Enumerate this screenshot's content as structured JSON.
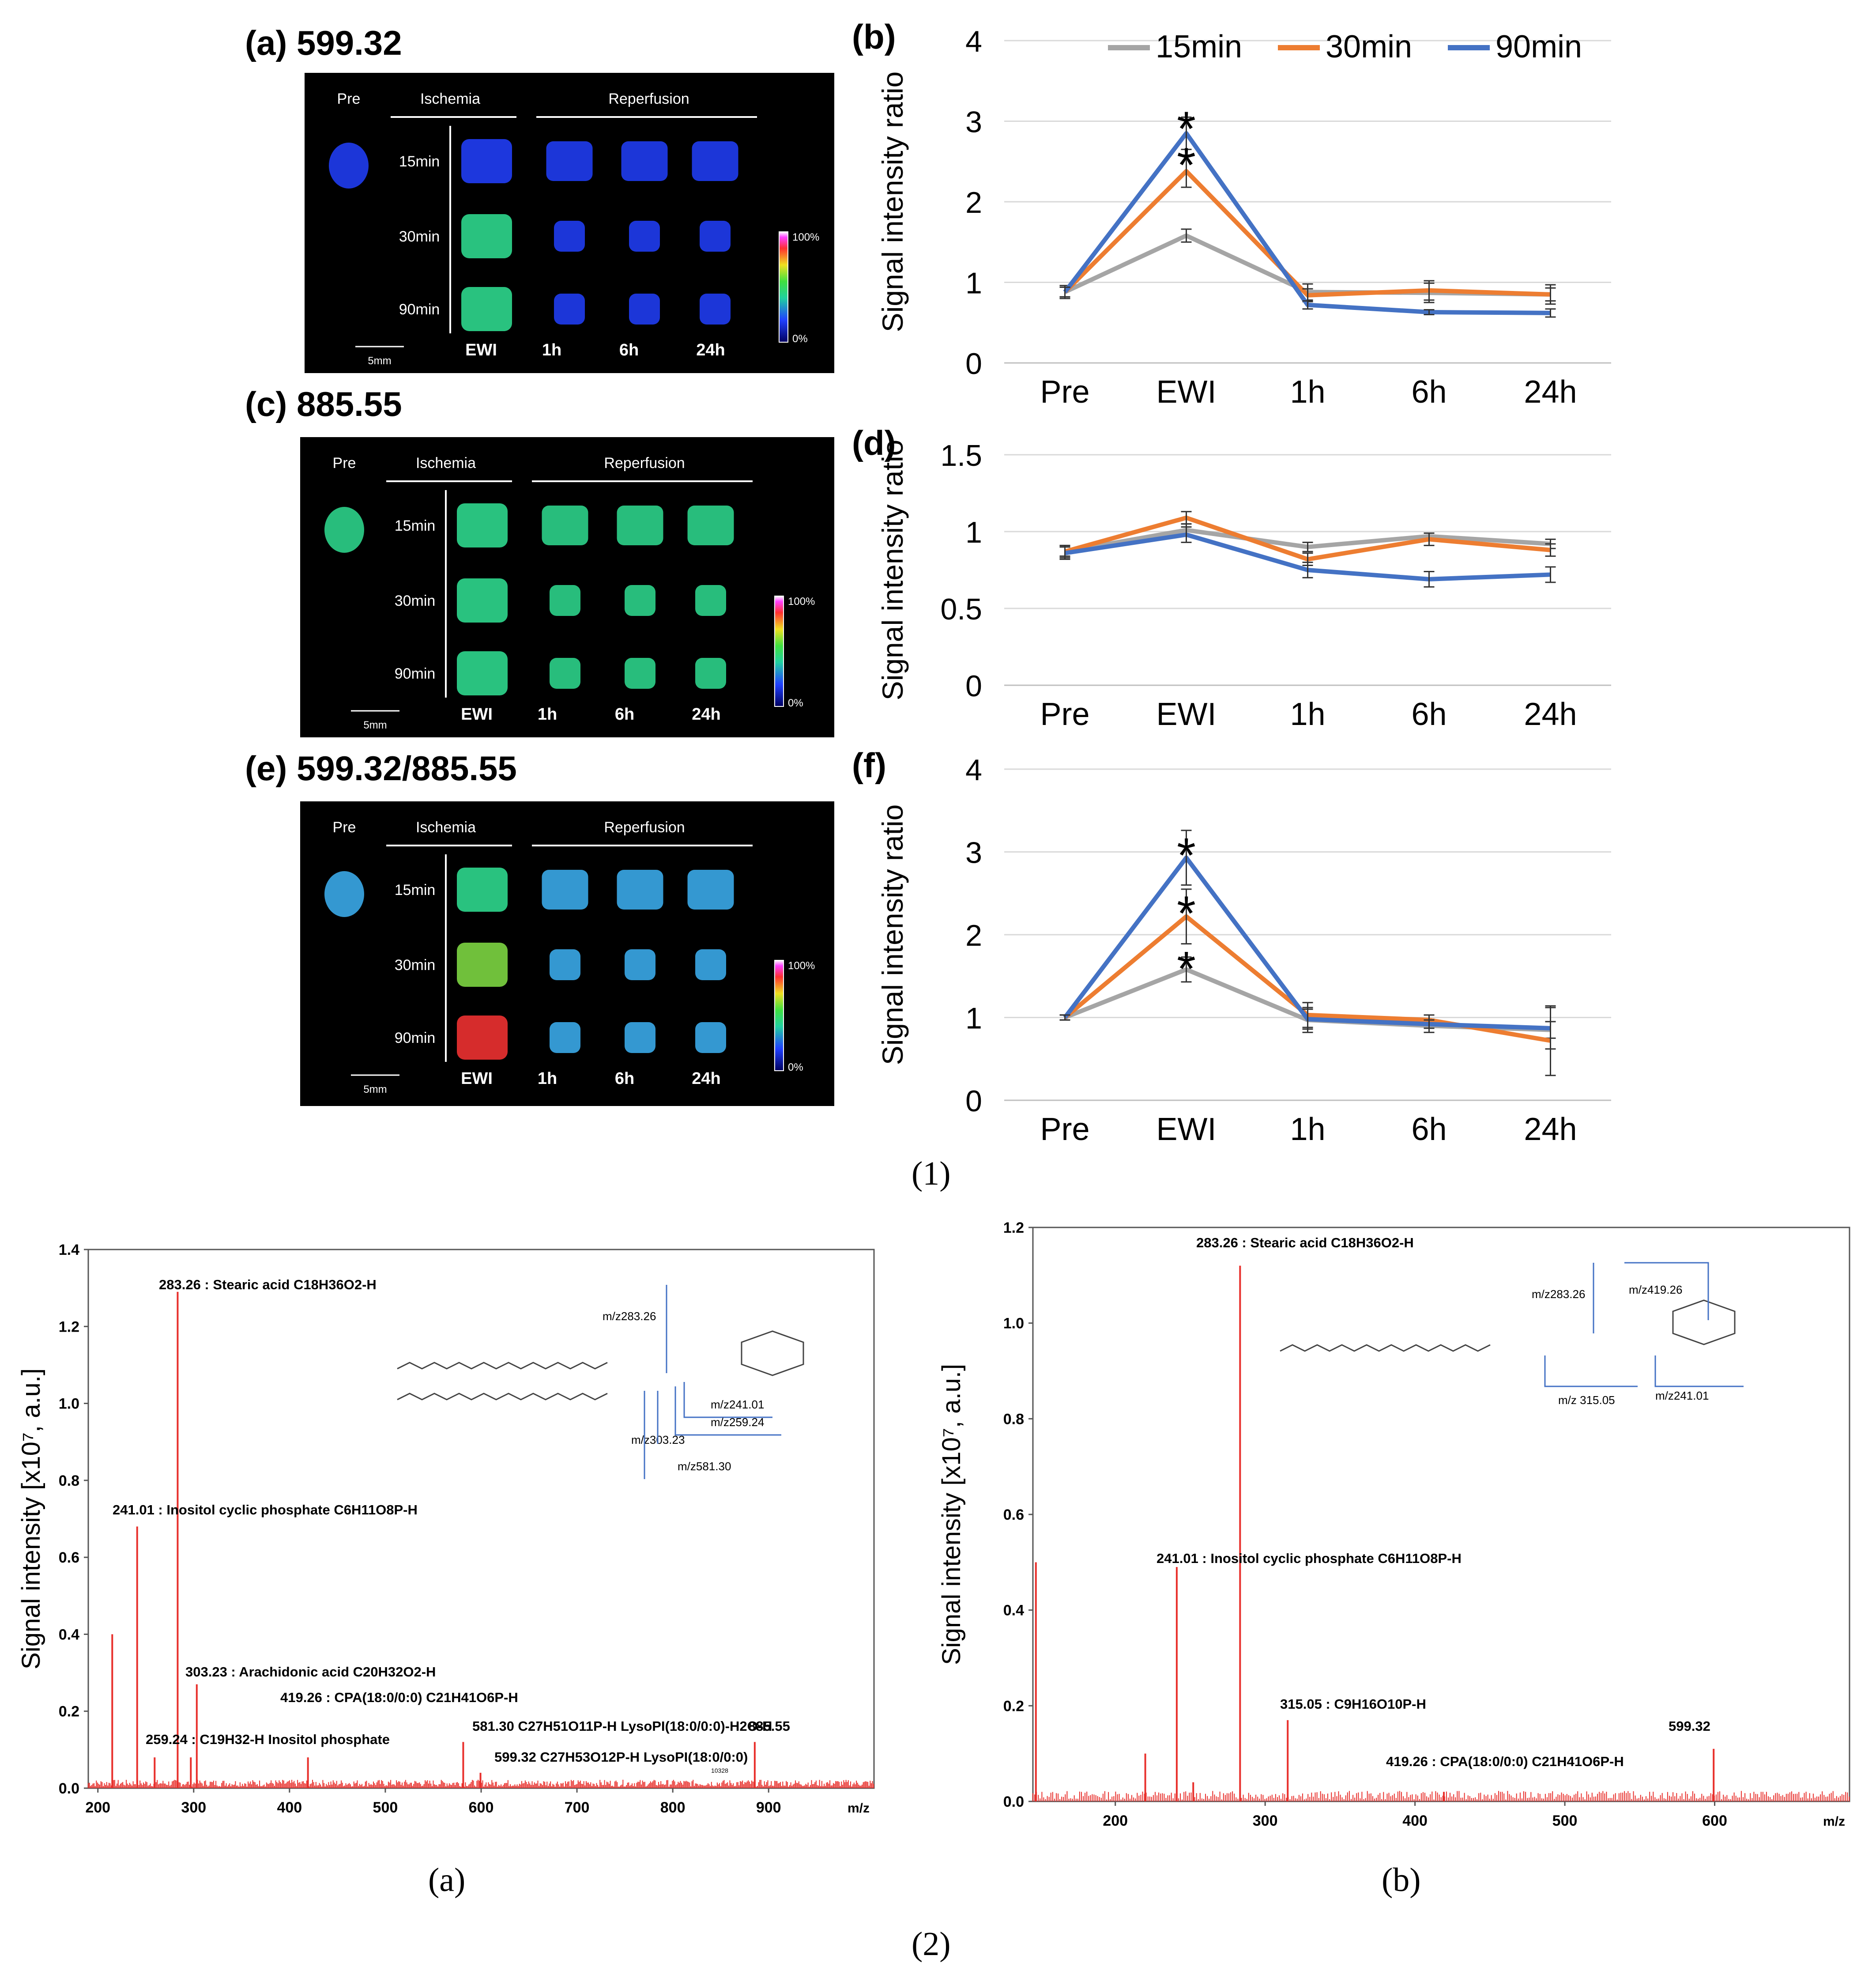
{
  "figure1": {
    "label": "(1)",
    "panels": [
      {
        "label": "(a) 599.32"
      },
      {
        "label": "(c) 885.55"
      },
      {
        "label": "(e) 599.32/885.55"
      }
    ],
    "msi": {
      "pre": "Pre",
      "ischemia": "Ischemia",
      "reperfusion": "Reperfusion",
      "rows": [
        "15min",
        "30min",
        "90min"
      ],
      "cols": [
        "EWI",
        "1h",
        "6h",
        "24h"
      ],
      "scale": "5mm",
      "cbar_max": "100%",
      "cbar_min": "0%",
      "colors": {
        "low": "#1f3cf0",
        "mid": "#2cd28a",
        "high": "#f0e020",
        "hot": "#e83030"
      }
    }
  },
  "figure2": {
    "label": "(2)",
    "sub_a": "(a)",
    "sub_b": "(b)"
  },
  "chart_data": [
    {
      "id": "b",
      "type": "line",
      "panel_label": "(b)",
      "ylabel": "Signal intensity ratio",
      "categories": [
        "Pre",
        "EWI",
        "1h",
        "6h",
        "24h"
      ],
      "ylim": [
        0,
        4
      ],
      "yticks": [
        0,
        1,
        2,
        3,
        4
      ],
      "ytick_labels": [
        "0",
        "1",
        "2",
        "3",
        "4"
      ],
      "legend": "top",
      "series": [
        {
          "name": "15min",
          "color": "#a5a5a5",
          "values": [
            0.88,
            1.58,
            0.88,
            0.87,
            0.85
          ],
          "err": [
            0.08,
            0.08,
            0.1,
            0.12,
            0.12
          ]
        },
        {
          "name": "30min",
          "color": "#ed7d31",
          "values": [
            0.88,
            2.38,
            0.84,
            0.9,
            0.85
          ],
          "err": [
            0.06,
            0.2,
            0.08,
            0.12,
            0.08
          ]
        },
        {
          "name": "90min",
          "color": "#4472c4",
          "values": [
            0.88,
            2.85,
            0.72,
            0.63,
            0.62
          ],
          "err": [
            0.06,
            0.2,
            0.05,
            0.03,
            0.05
          ]
        }
      ],
      "annotations": [
        {
          "text": "*",
          "at": "EWI",
          "y": 3.0
        },
        {
          "text": "*",
          "at": "EWI",
          "y": 2.55
        }
      ]
    },
    {
      "id": "d",
      "type": "line",
      "panel_label": "(d)",
      "ylabel": "Signal intensity ratio",
      "categories": [
        "Pre",
        "EWI",
        "1h",
        "6h",
        "24h"
      ],
      "ylim": [
        0,
        1.5
      ],
      "yticks": [
        0,
        0.5,
        1,
        1.5
      ],
      "ytick_labels": [
        "0",
        "0.5",
        "1",
        "1.5"
      ],
      "series": [
        {
          "name": "15min",
          "color": "#a5a5a5",
          "values": [
            0.87,
            1.01,
            0.9,
            0.97,
            0.92
          ],
          "err": [
            0.03,
            0.04,
            0.03,
            0.02,
            0.03
          ]
        },
        {
          "name": "30min",
          "color": "#ed7d31",
          "values": [
            0.87,
            1.09,
            0.82,
            0.95,
            0.88
          ],
          "err": [
            0.04,
            0.04,
            0.04,
            0.04,
            0.04
          ]
        },
        {
          "name": "90min",
          "color": "#4472c4",
          "values": [
            0.86,
            0.98,
            0.75,
            0.69,
            0.72
          ],
          "err": [
            0.04,
            0.05,
            0.05,
            0.05,
            0.05
          ]
        }
      ],
      "annotations": []
    },
    {
      "id": "f",
      "type": "line",
      "panel_label": "(f)",
      "ylabel": "Signal intensity ratio",
      "categories": [
        "Pre",
        "EWI",
        "1h",
        "6h",
        "24h"
      ],
      "ylim": [
        0,
        4
      ],
      "yticks": [
        0,
        1,
        2,
        3,
        4
      ],
      "ytick_labels": [
        "0",
        "1",
        "2",
        "3",
        "4"
      ],
      "series": [
        {
          "name": "15min",
          "color": "#a5a5a5",
          "values": [
            1.0,
            1.58,
            0.97,
            0.9,
            0.85
          ],
          "err": [
            0.03,
            0.15,
            0.15,
            0.08,
            0.1
          ]
        },
        {
          "name": "30min",
          "color": "#ed7d31",
          "values": [
            1.0,
            2.22,
            1.03,
            0.97,
            0.72
          ],
          "err": [
            0.03,
            0.33,
            0.15,
            0.06,
            0.42
          ]
        },
        {
          "name": "90min",
          "color": "#4472c4",
          "values": [
            1.0,
            2.93,
            0.98,
            0.92,
            0.87
          ],
          "err": [
            0.03,
            0.33,
            0.12,
            0.05,
            0.25
          ]
        }
      ],
      "annotations": [
        {
          "text": "*",
          "at": "EWI",
          "y": 3.05
        },
        {
          "text": "*",
          "at": "EWI",
          "y": 2.35
        },
        {
          "text": "*",
          "at": "EWI",
          "y": 1.68
        }
      ]
    },
    {
      "id": "ms_a",
      "type": "spectrum",
      "ylabel": "Signal intensity [x10⁷, a.u.]",
      "xlabel": "m/z",
      "xlim": [
        190,
        1010
      ],
      "ylim": [
        0,
        1.4
      ],
      "xticks": [
        200,
        300,
        400,
        500,
        600,
        700,
        800,
        900
      ],
      "xtick_labels": [
        "200",
        "300",
        "400",
        "500",
        "600",
        "700",
        "800",
        "900"
      ],
      "yticks": [
        0,
        0.2,
        0.4,
        0.6,
        0.8,
        1.0,
        1.2,
        1.4
      ],
      "ytick_labels": [
        "0.0",
        "0.2",
        "0.4",
        "0.6",
        "0.8",
        "1.0",
        "1.2",
        "1.4"
      ],
      "peaks": [
        {
          "mz": 215,
          "v": 0.4
        },
        {
          "mz": 241.01,
          "v": 0.68
        },
        {
          "mz": 259.24,
          "v": 0.08
        },
        {
          "mz": 283.26,
          "v": 1.29
        },
        {
          "mz": 297,
          "v": 0.08
        },
        {
          "mz": 303.23,
          "v": 0.27
        },
        {
          "mz": 419.26,
          "v": 0.08
        },
        {
          "mz": 581.3,
          "v": 0.12
        },
        {
          "mz": 599.32,
          "v": 0.04
        },
        {
          "mz": 885.55,
          "v": 0.12
        }
      ],
      "peak_labels": [
        {
          "text": "283.26 : Stearic acid  C18H36O2-H",
          "mz": 283.26,
          "v": 1.29
        },
        {
          "text": "241.01 : Inositol cyclic phosphate C6H11O8P-H",
          "mz": 241.01,
          "v": 0.68
        },
        {
          "text": "303.23 : Arachidonic acid C20H32O2-H",
          "mz": 303.23,
          "v": 0.27
        },
        {
          "text": "419.26 : CPA(18:0/0:0) C21H41O6P-H",
          "mz": 419.26,
          "v": 0.08
        },
        {
          "text": "259.24 : C19H32-H Inositol phosphate",
          "mz": 259.24,
          "v": 0.08
        },
        {
          "text": "581.30 C27H51O11P-H LysoPI(18:0/0:0)-H2O-H",
          "mz": 581.3,
          "v": 0.12
        },
        {
          "text": "599.32 C27H53O12P-H LysoPI(18:0/0:0)",
          "mz": 599.32,
          "v": 0.04
        },
        {
          "text": "885.55",
          "mz": 885.55,
          "v": 0.12
        }
      ],
      "fragments": [
        "m/z283.26",
        "m/z241.01",
        "m/z259.24",
        "m/z303.23",
        "m/z581.30"
      ],
      "small_label": "10328"
    },
    {
      "id": "ms_b",
      "type": "spectrum",
      "ylabel": "Signal intensity [x10⁷, a.u.]",
      "xlabel": "m/z",
      "xlim": [
        145,
        690
      ],
      "ylim": [
        0,
        1.2
      ],
      "xticks": [
        200,
        300,
        400,
        500,
        600
      ],
      "xtick_labels": [
        "200",
        "300",
        "400",
        "500",
        "600"
      ],
      "yticks": [
        0,
        0.2,
        0.4,
        0.6,
        0.8,
        1.0,
        1.2
      ],
      "ytick_labels": [
        "0.0",
        "0.2",
        "0.4",
        "0.6",
        "0.8",
        "1.0",
        "1.2"
      ],
      "peaks": [
        {
          "mz": 147,
          "v": 0.5
        },
        {
          "mz": 220,
          "v": 0.1
        },
        {
          "mz": 241.01,
          "v": 0.49
        },
        {
          "mz": 252,
          "v": 0.04
        },
        {
          "mz": 283.26,
          "v": 1.12
        },
        {
          "mz": 315.05,
          "v": 0.17
        },
        {
          "mz": 419.26,
          "v": 0.02
        },
        {
          "mz": 599.32,
          "v": 0.11
        }
      ],
      "peak_labels": [
        {
          "text": "283.26 : Stearic acid  C18H36O2-H",
          "mz": 283.26,
          "v": 1.12
        },
        {
          "text": "241.01 : Inositol  cyclic phosphate C6H11O8P-H",
          "mz": 241.01,
          "v": 0.49
        },
        {
          "text": "315.05 :  C9H16O10P-H",
          "mz": 315.05,
          "v": 0.17
        },
        {
          "text": "599.32",
          "mz": 599.32,
          "v": 0.11
        },
        {
          "text": "419.26 : CPA(18:0/0:0) C21H41O6P-H",
          "mz": 419.26,
          "v": 0.02
        }
      ],
      "fragments": [
        "m/z283.26",
        "m/z419.26",
        "m/z 315.05",
        "m/z241.01"
      ]
    }
  ]
}
